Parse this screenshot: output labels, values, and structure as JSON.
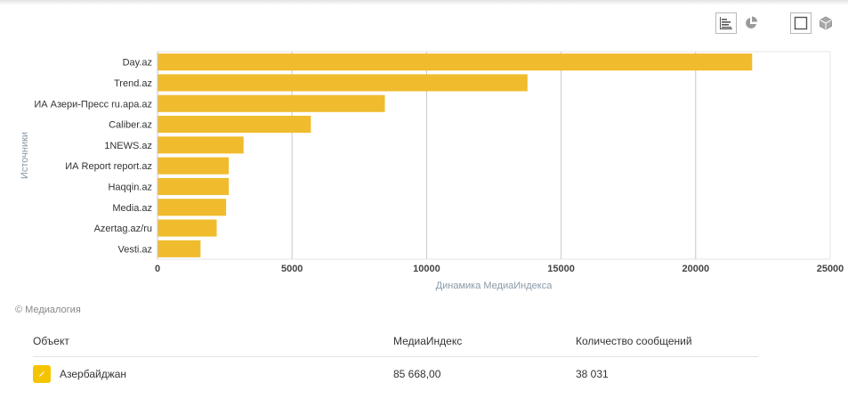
{
  "chart_data": {
    "type": "bar",
    "orientation": "horizontal",
    "categories": [
      "Day.az",
      "Trend.az",
      "ИА Азери-Пресс ru.apa.az",
      "Caliber.az",
      "1NEWS.az",
      "ИА Report report.az",
      "Haqqin.az",
      "Media.az",
      "Azertag.az/ru",
      "Vesti.az"
    ],
    "series": [
      {
        "name": "Азербайджан",
        "values": [
          22100,
          13750,
          8450,
          5700,
          3200,
          2650,
          2650,
          2550,
          2200,
          1600
        ]
      }
    ],
    "xlabel": "Динамика МедиаИндекса",
    "ylabel": "Источники",
    "xlim": [
      0,
      25000
    ],
    "xticks": [
      "0",
      "5000",
      "10000",
      "15000",
      "20000",
      "25000"
    ],
    "grid": true,
    "bar_color": "#f0bc2e"
  },
  "copyright": "© Медиалогия",
  "table": {
    "headers": {
      "object": "Объект",
      "index": "МедиаИндекс",
      "count": "Количество сообщений"
    },
    "rows": [
      {
        "object": "Азербайджан",
        "index": "85 668,00",
        "count": "38 031",
        "color": "#f5c400"
      }
    ]
  },
  "toolbar": {
    "icons": [
      "bar-chart-icon",
      "pie-chart-icon",
      "2d-view-icon",
      "3d-view-icon"
    ]
  }
}
